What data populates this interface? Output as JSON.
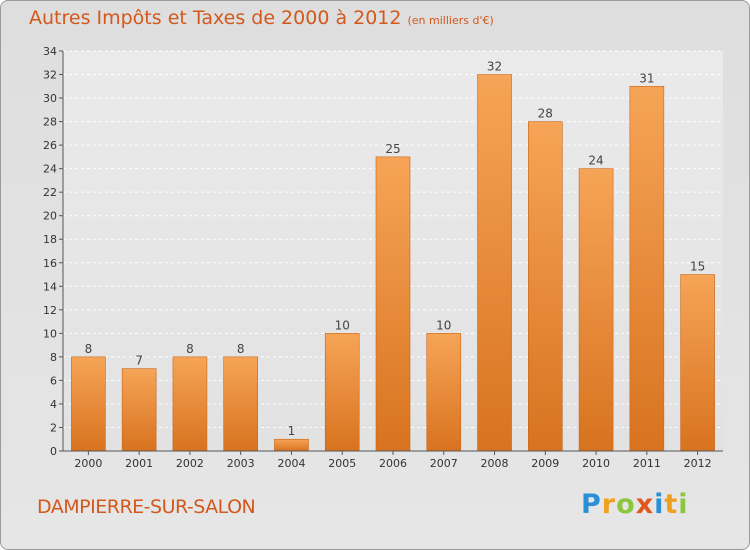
{
  "header": {
    "title": "Autres Impôts et Taxes de 2000 à 2012",
    "unit": "(en milliers d'€)"
  },
  "footer": {
    "commune": "DAMPIERRE-SUR-SALON",
    "logo_text": "Proxiti"
  },
  "chart_data": {
    "type": "bar",
    "categories": [
      "2000",
      "2001",
      "2002",
      "2003",
      "2004",
      "2005",
      "2006",
      "2007",
      "2008",
      "2009",
      "2010",
      "2011",
      "2012"
    ],
    "values": [
      8,
      7,
      8,
      8,
      1,
      10,
      25,
      10,
      32,
      28,
      24,
      31,
      15
    ],
    "ylim": [
      0,
      34
    ],
    "ytick_step": 2,
    "grid": true,
    "bar_color": "#f0913a"
  }
}
